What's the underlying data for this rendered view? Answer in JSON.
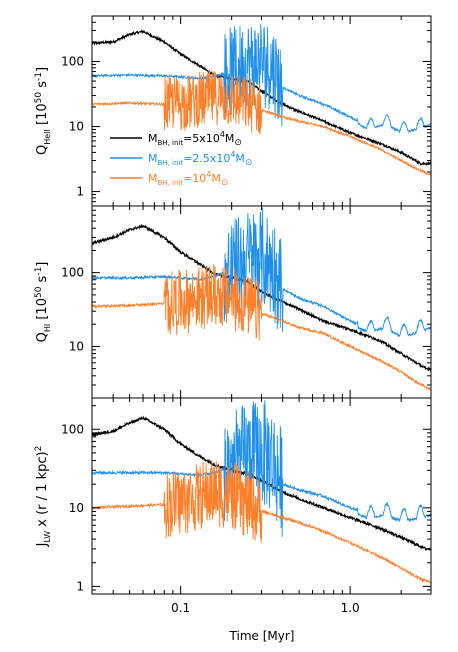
{
  "figure": {
    "xlabel": "Time [Myr]",
    "panel_ylabels": [
      {
        "main": "Q",
        "sub": "HeII",
        "rest": " [10",
        "sup": "50",
        "tail": " s",
        "sup2": "-1",
        "close": "]"
      },
      {
        "main": "Q",
        "sub": "HI",
        "rest": " [10",
        "sup": "50",
        "tail": " s",
        "sup2": "-1",
        "close": "]"
      },
      {
        "main": "J",
        "sub": "LW",
        "rest": " x (r / 1 kpc)",
        "sup": "2",
        "tail": "",
        "sup2": "",
        "close": ""
      }
    ],
    "legend": [
      {
        "pre": "M",
        "sub": "BH, init",
        "mid": "=5x10",
        "sup": "4",
        "post": "M",
        "sun": "⊙",
        "color": "#000000"
      },
      {
        "pre": "M",
        "sub": "BH, init",
        "mid": "=2.5x10",
        "sup": "4",
        "post": "M",
        "sun": "⊙",
        "color": "#1f8fe8"
      },
      {
        "pre": "M",
        "sub": "BH, init",
        "mid": "=10",
        "sup": "4",
        "post": "M",
        "sun": "⊙",
        "color": "#ff7f2a"
      }
    ],
    "series_colors": {
      "m5e4": "#000000",
      "m2_5e4": "#1f8fe8",
      "m1e4": "#ff7f2a"
    }
  },
  "chart_data": [
    {
      "type": "line",
      "xlabel": "Time [Myr]",
      "ylabel": "Q_HeII [10^50 s^-1]",
      "xscale": "log",
      "yscale": "log",
      "xlim": [
        0.03,
        3.0
      ],
      "ylim": [
        0.6,
        500
      ],
      "xticks": [
        "0.1",
        "1.0"
      ],
      "yticks": [
        "1",
        "10",
        "100"
      ],
      "series": [
        {
          "name": "M_BH,init=5x10^4 M_sun",
          "color": "#000000",
          "x": [
            0.03,
            0.04,
            0.05,
            0.06,
            0.08,
            0.1,
            0.13,
            0.16,
            0.2,
            0.25,
            0.3,
            0.4,
            0.5,
            0.7,
            1.0,
            1.5,
            2.0,
            2.6
          ],
          "y": [
            190,
            200,
            260,
            290,
            200,
            130,
            85,
            60,
            55,
            50,
            35,
            22,
            17,
            12,
            8,
            5.5,
            4,
            2.7
          ]
        },
        {
          "name": "M_BH,init=2.5x10^4 M_sun",
          "color": "#1f8fe8",
          "x": [
            0.03,
            0.05,
            0.08,
            0.1,
            0.13,
            0.16,
            0.2,
            0.25,
            0.3,
            0.35,
            0.4,
            0.5,
            0.7,
            1.0,
            1.3,
            1.6,
            2.0,
            2.5,
            3.0
          ],
          "y": [
            60,
            62,
            60,
            58,
            55,
            60,
            70,
            90,
            100,
            80,
            40,
            30,
            22,
            14,
            10,
            12,
            9,
            10,
            12
          ],
          "osc_range": [
            0.18,
            0.4
          ],
          "osc_amp": 1.6
        },
        {
          "name": "M_BH,init=10^4 M_sun",
          "color": "#ff7f2a",
          "x": [
            0.03,
            0.05,
            0.08,
            0.1,
            0.13,
            0.16,
            0.2,
            0.25,
            0.3,
            0.4,
            0.5,
            0.7,
            1.0,
            1.5,
            2.0,
            2.5,
            3.0
          ],
          "y": [
            22,
            23,
            22,
            23,
            25,
            28,
            26,
            22,
            18,
            14,
            12,
            10,
            7,
            4.5,
            3,
            2.2,
            1.8
          ],
          "osc_range": [
            0.08,
            0.3
          ],
          "osc_amp": 1.0
        }
      ]
    },
    {
      "type": "line",
      "xlabel": "Time [Myr]",
      "ylabel": "Q_HI [10^50 s^-1]",
      "xscale": "log",
      "yscale": "log",
      "xlim": [
        0.03,
        3.0
      ],
      "ylim": [
        2,
        800
      ],
      "xticks": [
        "0.1",
        "1.0"
      ],
      "yticks": [
        "10",
        "100"
      ],
      "series": [
        {
          "name": "M_BH,init=5x10^4 M_sun",
          "color": "#000000",
          "x": [
            0.03,
            0.04,
            0.05,
            0.06,
            0.08,
            0.1,
            0.13,
            0.16,
            0.2,
            0.25,
            0.3,
            0.4,
            0.5,
            0.7,
            1.0,
            1.5,
            2.0,
            2.8
          ],
          "y": [
            250,
            300,
            380,
            430,
            300,
            190,
            130,
            95,
            85,
            75,
            55,
            40,
            32,
            22,
            17,
            12,
            8,
            5
          ]
        },
        {
          "name": "M_BH,init=2.5x10^4 M_sun",
          "color": "#1f8fe8",
          "x": [
            0.03,
            0.05,
            0.08,
            0.1,
            0.13,
            0.16,
            0.2,
            0.25,
            0.3,
            0.35,
            0.4,
            0.5,
            0.7,
            1.0,
            1.3,
            1.6,
            2.0,
            2.5,
            3.0
          ],
          "y": [
            85,
            85,
            88,
            85,
            82,
            90,
            110,
            150,
            160,
            120,
            60,
            45,
            35,
            22,
            17,
            20,
            15,
            17,
            20
          ],
          "osc_range": [
            0.18,
            0.4
          ],
          "osc_amp": 1.6
        },
        {
          "name": "M_BH,init=10^4 M_sun",
          "color": "#ff7f2a",
          "x": [
            0.03,
            0.05,
            0.08,
            0.1,
            0.13,
            0.16,
            0.2,
            0.25,
            0.3,
            0.4,
            0.5,
            0.7,
            1.0,
            1.5,
            2.0,
            2.5,
            3.0
          ],
          "y": [
            35,
            36,
            38,
            40,
            45,
            50,
            45,
            35,
            28,
            22,
            18,
            15,
            10,
            6.5,
            4.5,
            3.2,
            2.6
          ],
          "osc_range": [
            0.08,
            0.3
          ],
          "osc_amp": 1.0
        }
      ]
    },
    {
      "type": "line",
      "xlabel": "Time [Myr]",
      "ylabel": "J_LW x (r / 1 kpc)^2",
      "xscale": "log",
      "yscale": "log",
      "xlim": [
        0.03,
        3.0
      ],
      "ylim": [
        0.8,
        250
      ],
      "xticks": [
        "0.1",
        "1.0"
      ],
      "yticks": [
        "1",
        "10",
        "100"
      ],
      "series": [
        {
          "name": "M_BH,init=5x10^4 M_sun",
          "color": "#000000",
          "x": [
            0.03,
            0.04,
            0.05,
            0.06,
            0.08,
            0.1,
            0.13,
            0.16,
            0.2,
            0.25,
            0.3,
            0.4,
            0.5,
            0.7,
            1.0,
            1.5,
            2.0,
            2.8
          ],
          "y": [
            85,
            95,
            120,
            140,
            100,
            65,
            45,
            35,
            30,
            27,
            22,
            16,
            13,
            10,
            7.5,
            5.5,
            4.2,
            3
          ]
        },
        {
          "name": "M_BH,init=2.5x10^4 M_sun",
          "color": "#1f8fe8",
          "x": [
            0.03,
            0.05,
            0.08,
            0.1,
            0.13,
            0.16,
            0.2,
            0.25,
            0.3,
            0.35,
            0.4,
            0.5,
            0.7,
            1.0,
            1.3,
            1.6,
            2.0,
            2.5,
            3.0
          ],
          "y": [
            28,
            28,
            28,
            27,
            26,
            28,
            35,
            45,
            50,
            40,
            20,
            17,
            14,
            10,
            8,
            9,
            7.5,
            8,
            9
          ],
          "osc_range": [
            0.18,
            0.4
          ],
          "osc_amp": 1.6
        },
        {
          "name": "M_BH,init=10^4 M_sun",
          "color": "#ff7f2a",
          "x": [
            0.03,
            0.05,
            0.08,
            0.1,
            0.13,
            0.16,
            0.2,
            0.25,
            0.3,
            0.4,
            0.5,
            0.7,
            1.0,
            1.5,
            2.0,
            2.5,
            3.0
          ],
          "y": [
            10,
            10.5,
            11,
            12,
            14,
            16,
            14,
            11,
            9,
            7.5,
            6.5,
            5,
            3.6,
            2.4,
            1.7,
            1.3,
            1.1
          ],
          "osc_range": [
            0.08,
            0.3
          ],
          "osc_amp": 1.0
        }
      ]
    }
  ]
}
